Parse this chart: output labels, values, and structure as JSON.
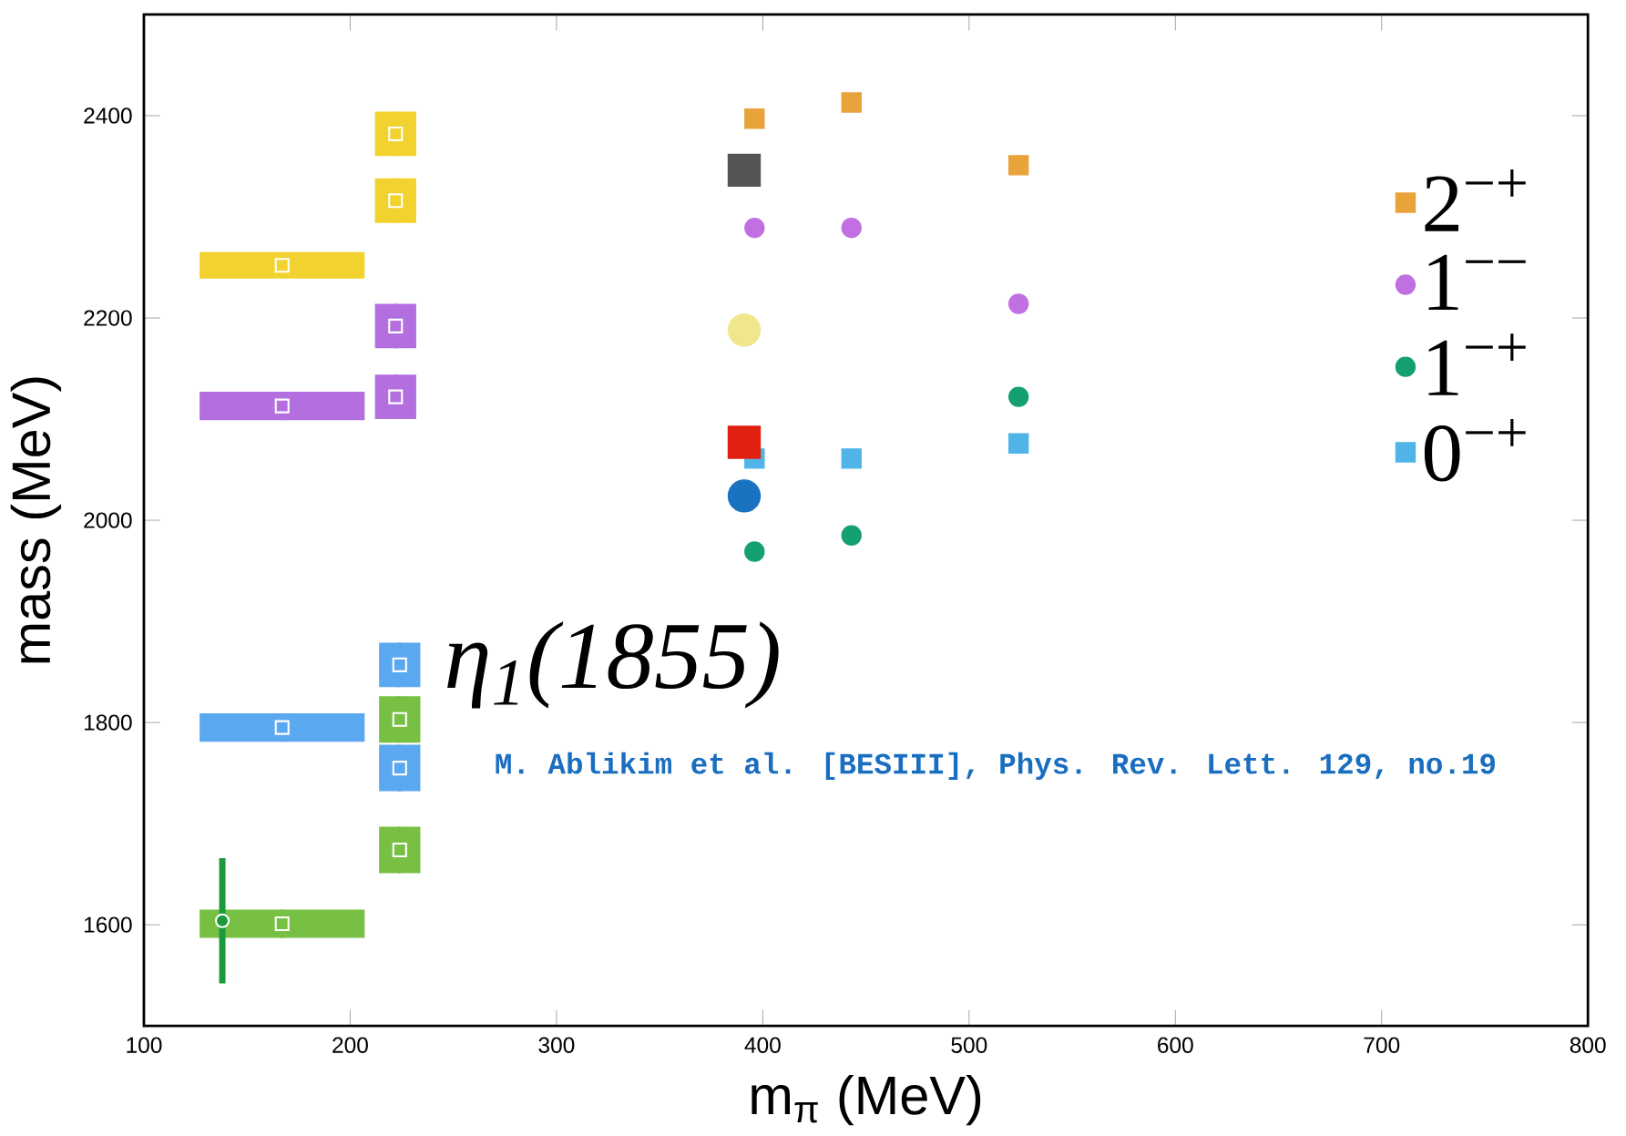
{
  "chart_data": {
    "type": "scatter",
    "xlabel": "m$_{π}$ (MeV)",
    "ylabel": "mass (MeV)",
    "xlim": [
      100,
      800
    ],
    "ylim": [
      1500,
      2500
    ],
    "xticks": [
      100,
      200,
      300,
      400,
      500,
      600,
      700,
      800
    ],
    "yticks": [
      1600,
      1800,
      2000,
      2200,
      2400
    ],
    "legend": "right",
    "grid": false,
    "annotations": [
      "η$_{1}$(1855)",
      "M. Ablikim et al. [BESIII], Phys. Rev. Lett. 129, no.19"
    ],
    "series": [
      {
        "name": "2$^{−+}$",
        "color": "#e8a33a",
        "marker": "square",
        "x": [
          396,
          443,
          524
        ],
        "values": [
          2397,
          2413,
          2351
        ]
      },
      {
        "name": "1$^{−−}$",
        "color": "#c070e0",
        "marker": "circle",
        "x": [
          396,
          443,
          524
        ],
        "values": [
          2289,
          2289,
          2214
        ]
      },
      {
        "name": "1$^{−+}$",
        "color": "#14a070",
        "marker": "circle",
        "x": [
          396,
          443,
          524
        ],
        "values": [
          1969,
          1985,
          2122
        ]
      },
      {
        "name": "0$^{−+}$",
        "color": "#50b4e8",
        "marker": "square",
        "x": [
          396,
          443,
          524
        ],
        "values": [
          2061,
          2061,
          2076
        ]
      },
      {
        "color": "#555555",
        "marker": "square",
        "x": [
          391
        ],
        "values": [
          2346
        ]
      },
      {
        "color": "#f0e68c",
        "marker": "circle",
        "x": [
          391
        ],
        "values": [
          2188
        ]
      },
      {
        "color": "#e02010",
        "marker": "square",
        "x": [
          391
        ],
        "values": [
          2077
        ]
      },
      {
        "color": "#1a72c0",
        "marker": "circle",
        "x": [
          391
        ],
        "values": [
          2024
        ]
      },
      {
        "color": "#f2d22e",
        "marker": "square",
        "x": [
          167,
          222,
          222
        ],
        "values": [
          2252,
          2382,
          2316
        ],
        "xerrors": [
          40,
          10,
          10
        ],
        "errors": [
          13,
          22,
          22
        ]
      },
      {
        "color": "#b36ee0",
        "marker": "square",
        "x": [
          167,
          222,
          222
        ],
        "values": [
          2113,
          2192,
          2122
        ],
        "xerrors": [
          40,
          10,
          10
        ],
        "errors": [
          14,
          22,
          22
        ]
      },
      {
        "color": "#5aa8f0",
        "marker": "square",
        "x": [
          167,
          224,
          224
        ],
        "values": [
          1795,
          1857,
          1755
        ],
        "xerrors": [
          40,
          10,
          10
        ],
        "errors": [
          14,
          22,
          23
        ]
      },
      {
        "color": "#78c044",
        "marker": "square",
        "x": [
          167,
          224,
          224
        ],
        "values": [
          1601,
          1803,
          1674
        ],
        "xerrors": [
          40,
          10,
          10
        ],
        "errors": [
          14,
          23,
          23
        ]
      },
      {
        "color": "#1a9a3a",
        "marker": "circle",
        "x": [
          138
        ],
        "values": [
          1604
        ],
        "errors": [
          62
        ]
      }
    ]
  }
}
